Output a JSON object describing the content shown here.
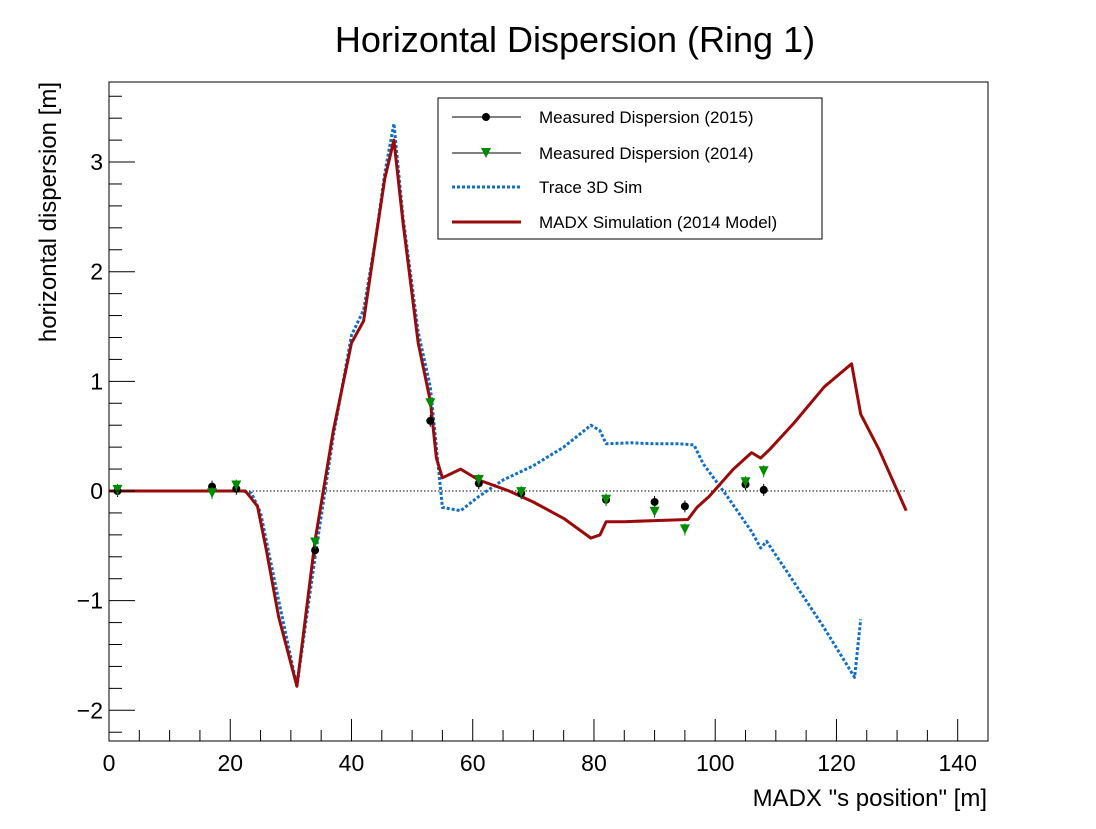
{
  "chart_data": {
    "type": "line",
    "title": "Horizontal Dispersion (Ring 1)",
    "xlabel": "MADX \"s position\" [m]",
    "ylabel": "horizontal dispersion [m]",
    "xlim": [
      0,
      145
    ],
    "ylim": [
      -2.28,
      3.73
    ],
    "x_ticks": [
      0,
      20,
      40,
      60,
      80,
      100,
      120,
      140
    ],
    "x_tick_labels": [
      "0",
      "20",
      "40",
      "60",
      "80",
      "100",
      "120",
      "140"
    ],
    "y_ticks": [
      -2,
      -1,
      0,
      1,
      2,
      3
    ],
    "y_tick_labels": [
      "−2",
      "−1",
      "0",
      "1",
      "2",
      "3"
    ],
    "grid": false,
    "zero_reference_line": true,
    "legend_position": "top-right",
    "series": [
      {
        "name": "Measured Dispersion (2015)",
        "style": "markers",
        "marker": "circle",
        "color": "#000000",
        "x": [
          1.4,
          17,
          21,
          34,
          53,
          61,
          68,
          82,
          90,
          95,
          105,
          108
        ],
        "y": [
          0.0,
          0.04,
          0.02,
          -0.54,
          0.64,
          0.07,
          -0.02,
          -0.08,
          -0.1,
          -0.14,
          0.06,
          0.01
        ]
      },
      {
        "name": "Measured Dispersion (2014)",
        "style": "markers",
        "marker": "triangle-down",
        "color": "#008c00",
        "x": [
          1.4,
          17,
          21,
          34,
          53,
          61,
          68,
          82,
          90,
          95,
          105,
          108
        ],
        "y": [
          0.01,
          -0.02,
          0.05,
          -0.47,
          0.8,
          0.1,
          -0.01,
          -0.08,
          -0.19,
          -0.35,
          0.08,
          0.18
        ]
      },
      {
        "name": "Trace 3D Sim",
        "style": "dotted-line",
        "color": "#0f6fc6",
        "x": [
          0,
          22,
          23.5,
          25,
          28,
          31,
          34,
          37,
          40,
          42,
          44,
          45.5,
          47,
          48.5,
          51,
          53,
          55,
          58,
          61,
          65,
          70,
          75,
          79.5,
          81,
          82,
          86,
          90,
          94,
          96.5,
          98,
          102,
          106,
          107.5,
          108.5,
          112,
          118,
          123,
          124
        ],
        "y": [
          0,
          0,
          -0.02,
          -0.2,
          -1.0,
          -1.78,
          -0.6,
          0.5,
          1.42,
          1.65,
          2.3,
          2.9,
          3.35,
          2.5,
          1.45,
          0.95,
          -0.15,
          -0.18,
          -0.05,
          0.1,
          0.23,
          0.4,
          0.6,
          0.55,
          0.43,
          0.44,
          0.43,
          0.43,
          0.42,
          0.25,
          -0.05,
          -0.37,
          -0.52,
          -0.46,
          -0.75,
          -1.25,
          -1.7,
          -1.17
        ]
      },
      {
        "name": "MADX Simulation (2014 Model)",
        "style": "line",
        "color": "#9b0a0a",
        "x": [
          0,
          22.5,
          24.5,
          26,
          28,
          31,
          34,
          37,
          40,
          42,
          44,
          45.5,
          47,
          48.5,
          51,
          53,
          54,
          55,
          58,
          61,
          66,
          70,
          75,
          79.5,
          81,
          82,
          85,
          90,
          95.5,
          97,
          99,
          103,
          106,
          107.5,
          109,
          113,
          118,
          122.5,
          124,
          127,
          131.5
        ],
        "y": [
          0,
          0,
          -0.14,
          -0.55,
          -1.15,
          -1.78,
          -0.45,
          0.55,
          1.35,
          1.55,
          2.3,
          2.85,
          3.2,
          2.45,
          1.35,
          0.82,
          0.3,
          0.12,
          0.2,
          0.1,
          0.0,
          -0.1,
          -0.25,
          -0.43,
          -0.4,
          -0.28,
          -0.28,
          -0.27,
          -0.26,
          -0.15,
          -0.05,
          0.2,
          0.35,
          0.3,
          0.38,
          0.62,
          0.95,
          1.16,
          0.7,
          0.38,
          -0.18
        ]
      }
    ]
  }
}
